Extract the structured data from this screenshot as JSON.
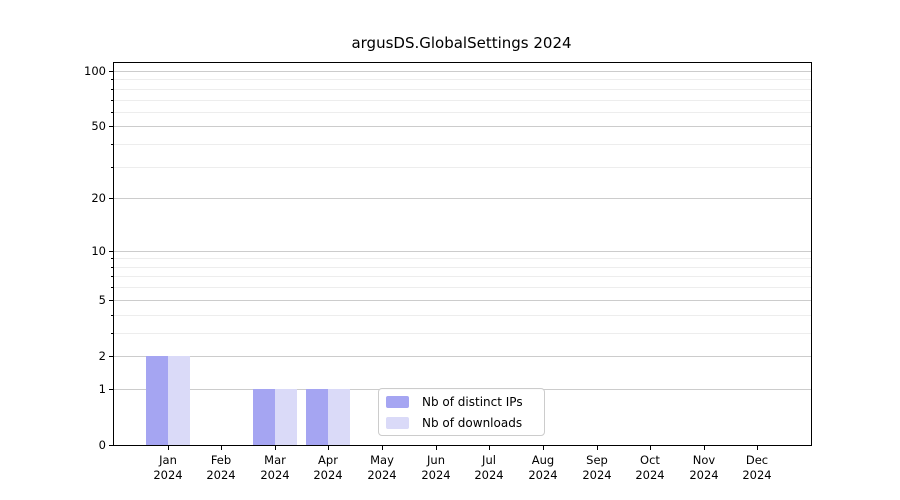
{
  "chart_data": {
    "type": "bar",
    "title": "argusDS.GlobalSettings 2024",
    "categories": [
      "Jan",
      "Feb",
      "Mar",
      "Apr",
      "May",
      "Jun",
      "Jul",
      "Aug",
      "Sep",
      "Oct",
      "Nov",
      "Dec"
    ],
    "category_year": "2024",
    "series": [
      {
        "name": "Nb of distinct IPs",
        "color": "#a5a5f2",
        "values": [
          2,
          0,
          1,
          1,
          0,
          0,
          0,
          0,
          0,
          0,
          0,
          0
        ]
      },
      {
        "name": "Nb of downloads",
        "color": "#dadaf8",
        "values": [
          2,
          0,
          1,
          1,
          0,
          0,
          0,
          0,
          0,
          0,
          0,
          0
        ]
      }
    ],
    "xlabel": "",
    "ylabel": "",
    "yscale": "log1p",
    "ylim": [
      0,
      110
    ],
    "y_major_ticks": [
      0,
      1,
      2,
      5,
      10,
      20,
      50,
      100
    ],
    "y_minor_ticks": [
      3,
      4,
      6,
      7,
      8,
      9,
      30,
      40,
      60,
      70,
      80,
      90
    ],
    "grid": "horizontal",
    "legend_position": "bottom-center"
  },
  "colors": {
    "major_grid": "#cccccc",
    "minor_grid": "#ededed",
    "spine": "#000000",
    "text": "#000000",
    "legend_border": "#cccccc",
    "background": "#ffffff"
  }
}
